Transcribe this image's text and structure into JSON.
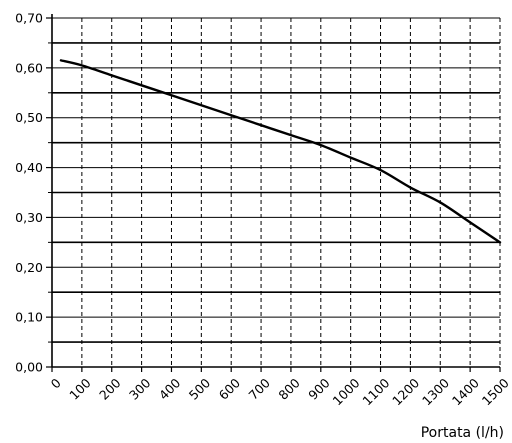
{
  "chart_data": {
    "type": "line",
    "xlabel": "Portata (l/h)",
    "ylabel": "",
    "xlim": [
      0,
      1500
    ],
    "ylim": [
      0,
      0.7
    ],
    "x_ticks": [
      "0",
      "100",
      "200",
      "300",
      "400",
      "500",
      "600",
      "700",
      "800",
      "900",
      "1000",
      "1100",
      "1200",
      "1300",
      "1400",
      "1500"
    ],
    "y_ticks": [
      "0,00",
      "0,10",
      "0,20",
      "0,30",
      "0,40",
      "0,50",
      "0,60",
      "0,70"
    ],
    "grid": true,
    "series": [
      {
        "x": [
          30,
          100,
          200,
          300,
          400,
          500,
          600,
          700,
          800,
          900,
          1000,
          1100,
          1200,
          1300,
          1400,
          1500
        ],
        "y": [
          0.615,
          0.605,
          0.585,
          0.565,
          0.545,
          0.525,
          0.505,
          0.485,
          0.465,
          0.445,
          0.42,
          0.395,
          0.36,
          0.33,
          0.29,
          0.25
        ]
      }
    ]
  }
}
